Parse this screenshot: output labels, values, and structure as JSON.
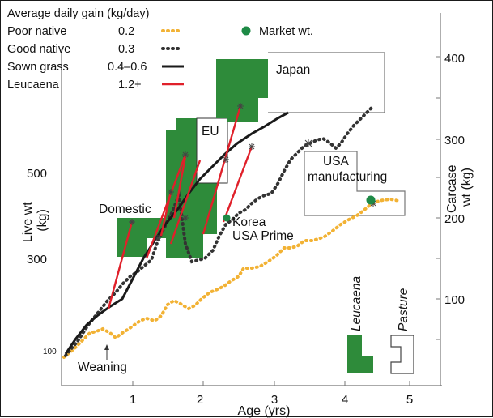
{
  "chart_data": {
    "type": "line",
    "legend": {
      "title": "Average daily gain (kg/day)",
      "placement": "top-left",
      "items": [
        {
          "name": "Poor native",
          "value": "0.2",
          "style": "dotted",
          "color": "#f2b234"
        },
        {
          "name": "Good native",
          "value": "0.3",
          "style": "dotted",
          "color": "#333333"
        },
        {
          "name": "Sown grass",
          "value": "0.4–0.6",
          "style": "solid",
          "color": "#1a1a1a"
        },
        {
          "name": "Leucaena",
          "value": "1.2+",
          "style": "solid",
          "color": "#e0202a"
        }
      ],
      "marker_legend": {
        "name": "Market wt.",
        "color": "#1e8a46"
      },
      "box_legend": [
        {
          "name": "Leucaena",
          "fill": "#2e8b3a"
        },
        {
          "name": "Pasture",
          "fill": "none"
        }
      ]
    },
    "x_axis": {
      "label": "Age (yrs)",
      "ticks": [
        "1",
        "2",
        "3",
        "4",
        "5"
      ],
      "range": [
        0,
        5.5
      ]
    },
    "y_axis_left": {
      "label": "Live wt (kg)",
      "ticks": [
        "100",
        "300",
        "500"
      ]
    },
    "y_axis_right": {
      "label": "Carcase wt (kg)",
      "ticks": [
        "100",
        "200",
        "300",
        "400"
      ]
    },
    "series": [
      {
        "name": "Poor native",
        "x": [
          0.0,
          0.2,
          0.4,
          0.55,
          0.7,
          0.85,
          1.0,
          1.2,
          1.4,
          1.6,
          1.8,
          2.0,
          2.2,
          2.4,
          2.6,
          2.8,
          3.0,
          3.2,
          3.4,
          3.6,
          3.8,
          4.0,
          4.2,
          4.4,
          4.6,
          4.8
        ],
        "y": [
          90,
          120,
          150,
          145,
          130,
          150,
          175,
          170,
          175,
          180,
          205,
          195,
          210,
          230,
          245,
          260,
          270,
          290,
          300,
          300,
          310,
          330,
          360,
          380,
          395,
          390
        ]
      },
      {
        "name": "Good native",
        "x": [
          0.0,
          0.3,
          0.6,
          0.9,
          1.1,
          1.3,
          1.5,
          1.7,
          1.9,
          2.1,
          2.3,
          2.5,
          2.7,
          2.9,
          3.1,
          3.3,
          3.5,
          3.7,
          3.9,
          4.1,
          4.3,
          4.5
        ],
        "y": [
          95,
          140,
          185,
          195,
          200,
          250,
          290,
          300,
          300,
          340,
          370,
          380,
          390,
          410,
          450,
          480,
          520,
          540,
          535,
          560,
          600,
          640
        ]
      },
      {
        "name": "Sown grass",
        "x": [
          0.0,
          0.3,
          0.6,
          0.9,
          1.2,
          1.5,
          1.8,
          2.1,
          2.4,
          2.7,
          3.0,
          3.3
        ],
        "y": [
          95,
          150,
          195,
          230,
          280,
          330,
          370,
          410,
          450,
          490,
          520,
          550
        ]
      },
      {
        "name": "Leucaena",
        "segments": [
          {
            "x": [
              0.6,
              1.05
            ],
            "y": [
              195,
              360
            ]
          },
          {
            "x": [
              1.35,
              1.8
            ],
            "y": [
              300,
              450
            ]
          },
          {
            "x": [
              1.5,
              1.85
            ],
            "y": [
              280,
              530
            ]
          },
          {
            "x": [
              1.55,
              2.15
            ],
            "y": [
              380,
              620
            ]
          },
          {
            "x": [
              1.9,
              2.55
            ],
            "y": [
              360,
              500
            ]
          },
          {
            "x": [
              2.2,
              2.7
            ],
            "y": [
              400,
              640
            ]
          },
          {
            "x": [
              2.3,
              2.8
            ],
            "y": [
              430,
              690
            ]
          }
        ]
      }
    ],
    "markets": [
      {
        "label": "Domestic"
      },
      {
        "label": "EU"
      },
      {
        "label": "Japan"
      },
      {
        "label": "Korea\nUSA Prime"
      },
      {
        "label": "USA\nmanufacturing"
      }
    ],
    "annotations": [
      {
        "text": "Weaning"
      }
    ],
    "grid": false
  }
}
